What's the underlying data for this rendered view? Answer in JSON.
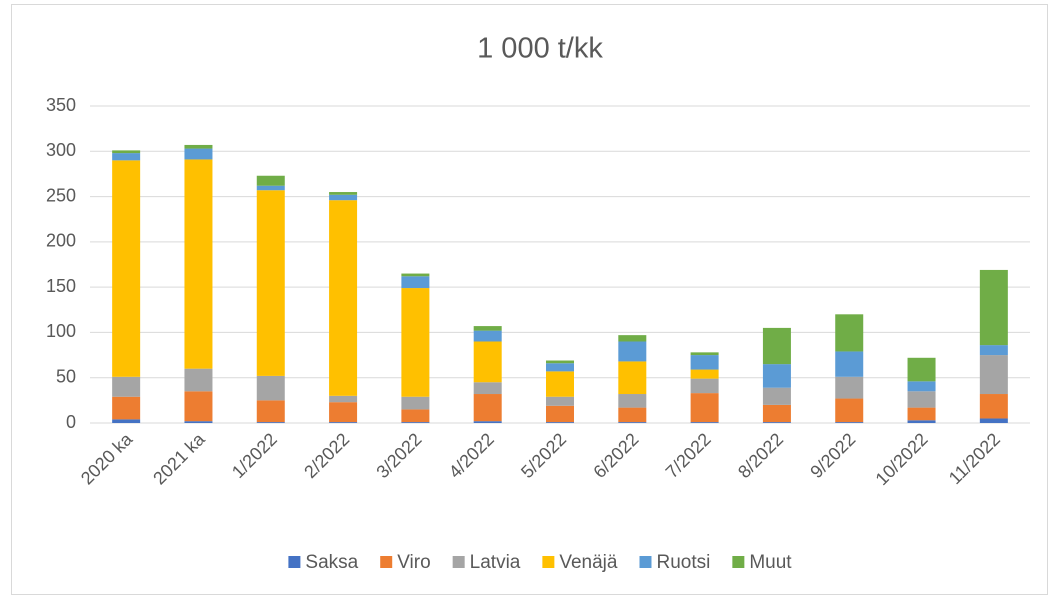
{
  "chart_data": {
    "type": "stacked_bar",
    "title": "1 000 t/kk",
    "categories": [
      "2020 ka",
      "2021 ka",
      "1/2022",
      "2/2022",
      "3/2022",
      "4/2022",
      "5/2022",
      "6/2022",
      "7/2022",
      "8/2022",
      "9/2022",
      "10/2022",
      "11/2022"
    ],
    "series": [
      {
        "name": "Saksa",
        "color": "#4472c4",
        "values": [
          4,
          2,
          1,
          1,
          1,
          2,
          1,
          1,
          1,
          1,
          1,
          3,
          5
        ]
      },
      {
        "name": "Viro",
        "color": "#ed7d31",
        "values": [
          25,
          33,
          24,
          22,
          14,
          30,
          18,
          16,
          32,
          19,
          26,
          14,
          27
        ]
      },
      {
        "name": "Latvia",
        "color": "#a5a5a5",
        "values": [
          22,
          25,
          27,
          7,
          14,
          13,
          10,
          15,
          16,
          19,
          24,
          18,
          43
        ]
      },
      {
        "name": "Venäjä",
        "color": "#ffc000",
        "values": [
          239,
          231,
          205,
          216,
          120,
          45,
          28,
          36,
          10,
          0,
          0,
          0,
          0
        ]
      },
      {
        "name": "Ruotsi",
        "color": "#5b9bd5",
        "values": [
          8,
          12,
          5,
          6,
          13,
          12,
          9,
          22,
          16,
          26,
          28,
          11,
          11
        ]
      },
      {
        "name": "Muut",
        "color": "#70ad47",
        "values": [
          3,
          4,
          11,
          3,
          3,
          5,
          3,
          7,
          3,
          40,
          41,
          26,
          83
        ]
      }
    ],
    "ylim": [
      0,
      350
    ],
    "yticks": [
      0,
      50,
      100,
      150,
      200,
      250,
      300,
      350
    ],
    "grid": true,
    "legend": "bottom"
  }
}
